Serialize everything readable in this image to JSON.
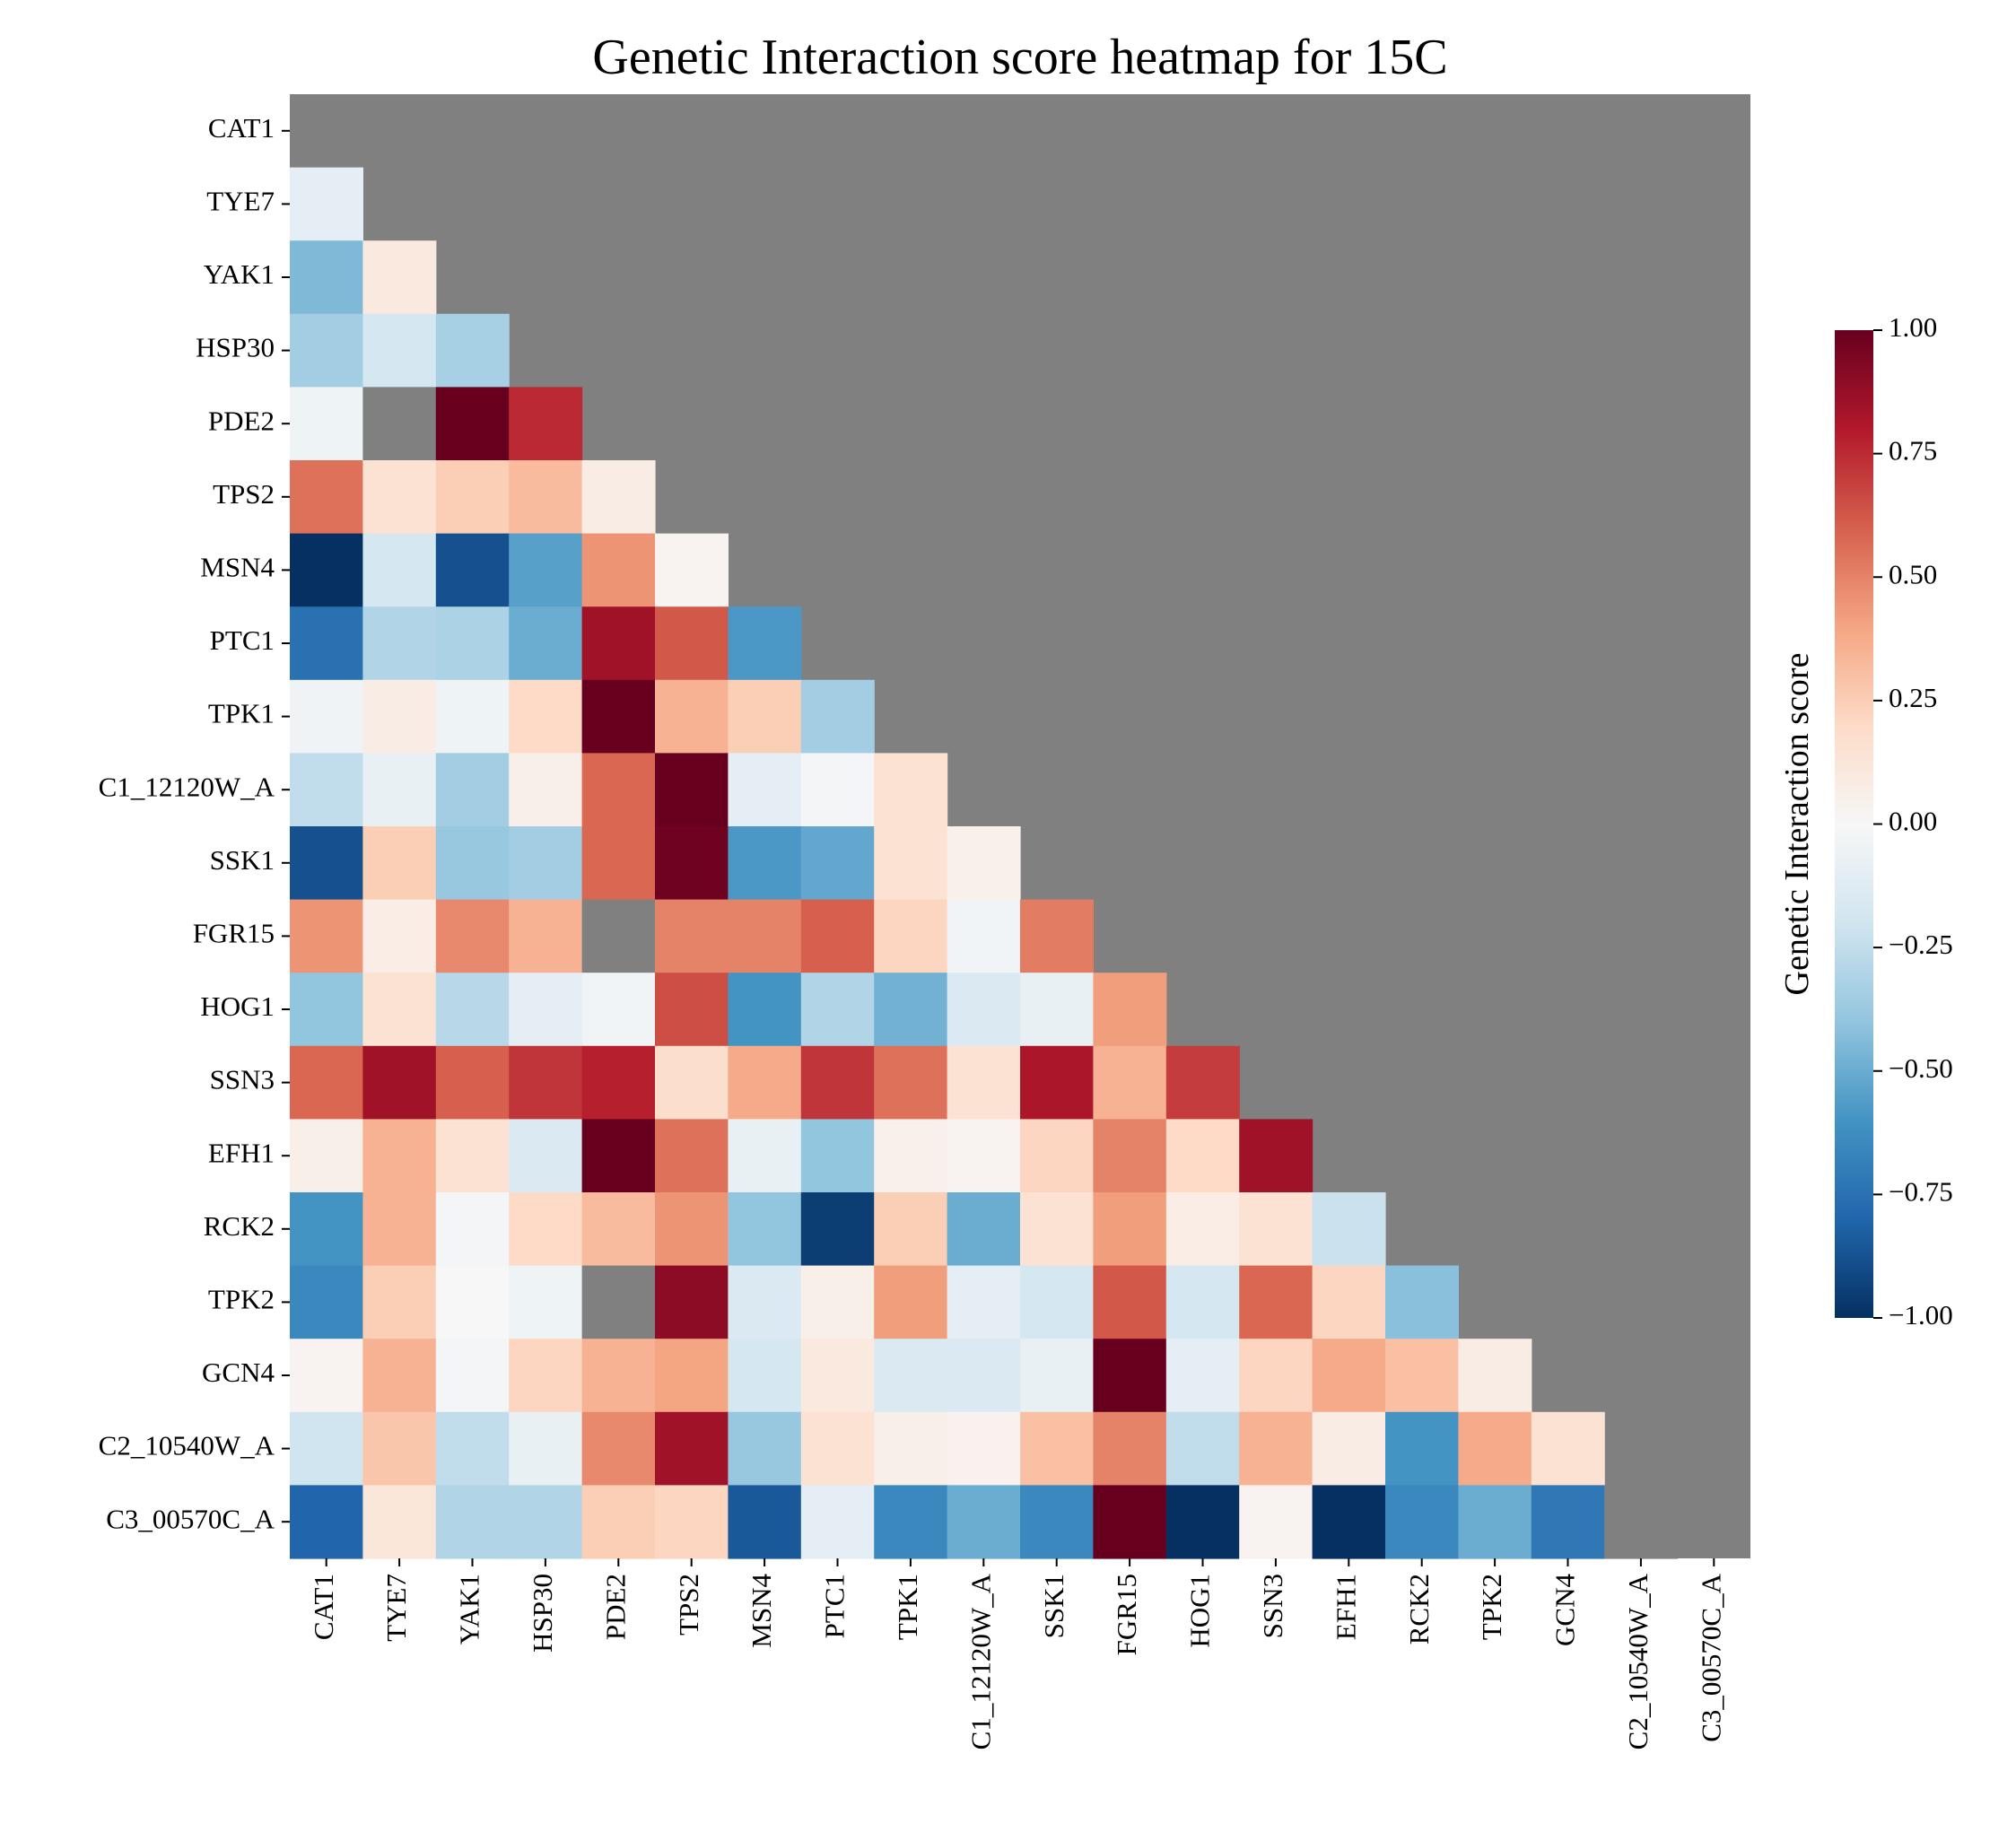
{
  "chart_data": {
    "type": "heatmap",
    "title": "Genetic Interaction score heatmap for 15C",
    "xlabel": "",
    "ylabel": "",
    "genes": [
      "CAT1",
      "TYE7",
      "YAK1",
      "HSP30",
      "PDE2",
      "TPS2",
      "MSN4",
      "PTC1",
      "TPK1",
      "C1_12120W_A",
      "SSK1",
      "FGR15",
      "HOG1",
      "SSN3",
      "EFH1",
      "RCK2",
      "TPK2",
      "GCN4",
      "C2_10540W_A",
      "C3_00570C_A"
    ],
    "mask": "upper-triangle-and-diagonal",
    "missing_color": "#808080",
    "colormap": "RdBu_r",
    "vmin": -1.0,
    "vmax": 1.0,
    "colorbar": {
      "label": "Genetic Interaction score",
      "ticks": [
        "1.00",
        "0.75",
        "0.50",
        "0.25",
        "0.00",
        "−0.25",
        "−0.50",
        "−0.75",
        "−1.00"
      ],
      "tick_values": [
        1.0,
        0.75,
        0.5,
        0.25,
        0.0,
        -0.25,
        -0.5,
        -0.75,
        -1.0
      ]
    },
    "values": [
      [],
      [
        -0.1
      ],
      [
        -0.45,
        0.1
      ],
      [
        -0.35,
        -0.18,
        -0.33
      ],
      [
        -0.05,
        null,
        1.0,
        0.75
      ],
      [
        0.55,
        0.15,
        0.25,
        0.32,
        0.08
      ],
      [
        -1.0,
        -0.18,
        -0.88,
        -0.55,
        0.45,
        0.03
      ],
      [
        -0.75,
        -0.3,
        -0.32,
        -0.5,
        0.85,
        0.62,
        -0.58
      ],
      [
        -0.04,
        0.08,
        -0.05,
        0.2,
        1.0,
        0.35,
        0.25,
        -0.35
      ],
      [
        -0.25,
        -0.08,
        -0.35,
        0.06,
        0.58,
        1.0,
        -0.1,
        -0.02,
        0.15
      ],
      [
        -0.88,
        0.25,
        -0.38,
        -0.35,
        0.58,
        0.98,
        -0.58,
        -0.52,
        0.15,
        0.05
      ],
      [
        0.45,
        0.07,
        0.48,
        0.35,
        null,
        0.5,
        0.5,
        0.6,
        0.22,
        -0.03,
        0.52
      ],
      [
        -0.4,
        0.15,
        -0.28,
        -0.1,
        -0.03,
        0.65,
        -0.6,
        -0.3,
        -0.48,
        -0.15,
        -0.08,
        0.42
      ],
      [
        0.58,
        0.85,
        0.6,
        0.72,
        0.78,
        0.18,
        0.38,
        0.72,
        0.55,
        0.15,
        0.82,
        0.35,
        0.7
      ],
      [
        0.06,
        0.35,
        0.15,
        -0.15,
        1.0,
        0.55,
        -0.08,
        -0.4,
        0.05,
        0.03,
        0.22,
        0.5,
        0.2,
        0.85
      ],
      [
        -0.6,
        0.35,
        -0.02,
        0.2,
        0.32,
        0.45,
        -0.4,
        -0.95,
        0.25,
        -0.5,
        0.15,
        0.42,
        0.07,
        0.15,
        -0.22
      ],
      [
        -0.65,
        0.25,
        0.0,
        -0.05,
        null,
        0.9,
        -0.15,
        0.06,
        0.42,
        -0.1,
        -0.18,
        0.62,
        -0.18,
        0.58,
        0.22,
        -0.42
      ],
      [
        0.03,
        0.35,
        -0.02,
        0.22,
        0.35,
        0.4,
        -0.18,
        0.1,
        -0.15,
        -0.15,
        -0.08,
        1.0,
        -0.1,
        0.22,
        0.38,
        0.3,
        0.08
      ],
      [
        -0.2,
        0.28,
        -0.25,
        -0.08,
        0.48,
        0.85,
        -0.38,
        0.15,
        0.06,
        0.04,
        0.3,
        0.5,
        -0.25,
        0.35,
        0.08,
        -0.6,
        0.38,
        0.15
      ],
      [
        -0.8,
        0.12,
        -0.3,
        -0.3,
        0.25,
        0.22,
        -0.85,
        -0.1,
        -0.65,
        -0.5,
        -0.65,
        1.0,
        -1.0,
        0.03,
        -1.0,
        -0.65,
        -0.5,
        -0.72,
        null
      ]
    ]
  }
}
